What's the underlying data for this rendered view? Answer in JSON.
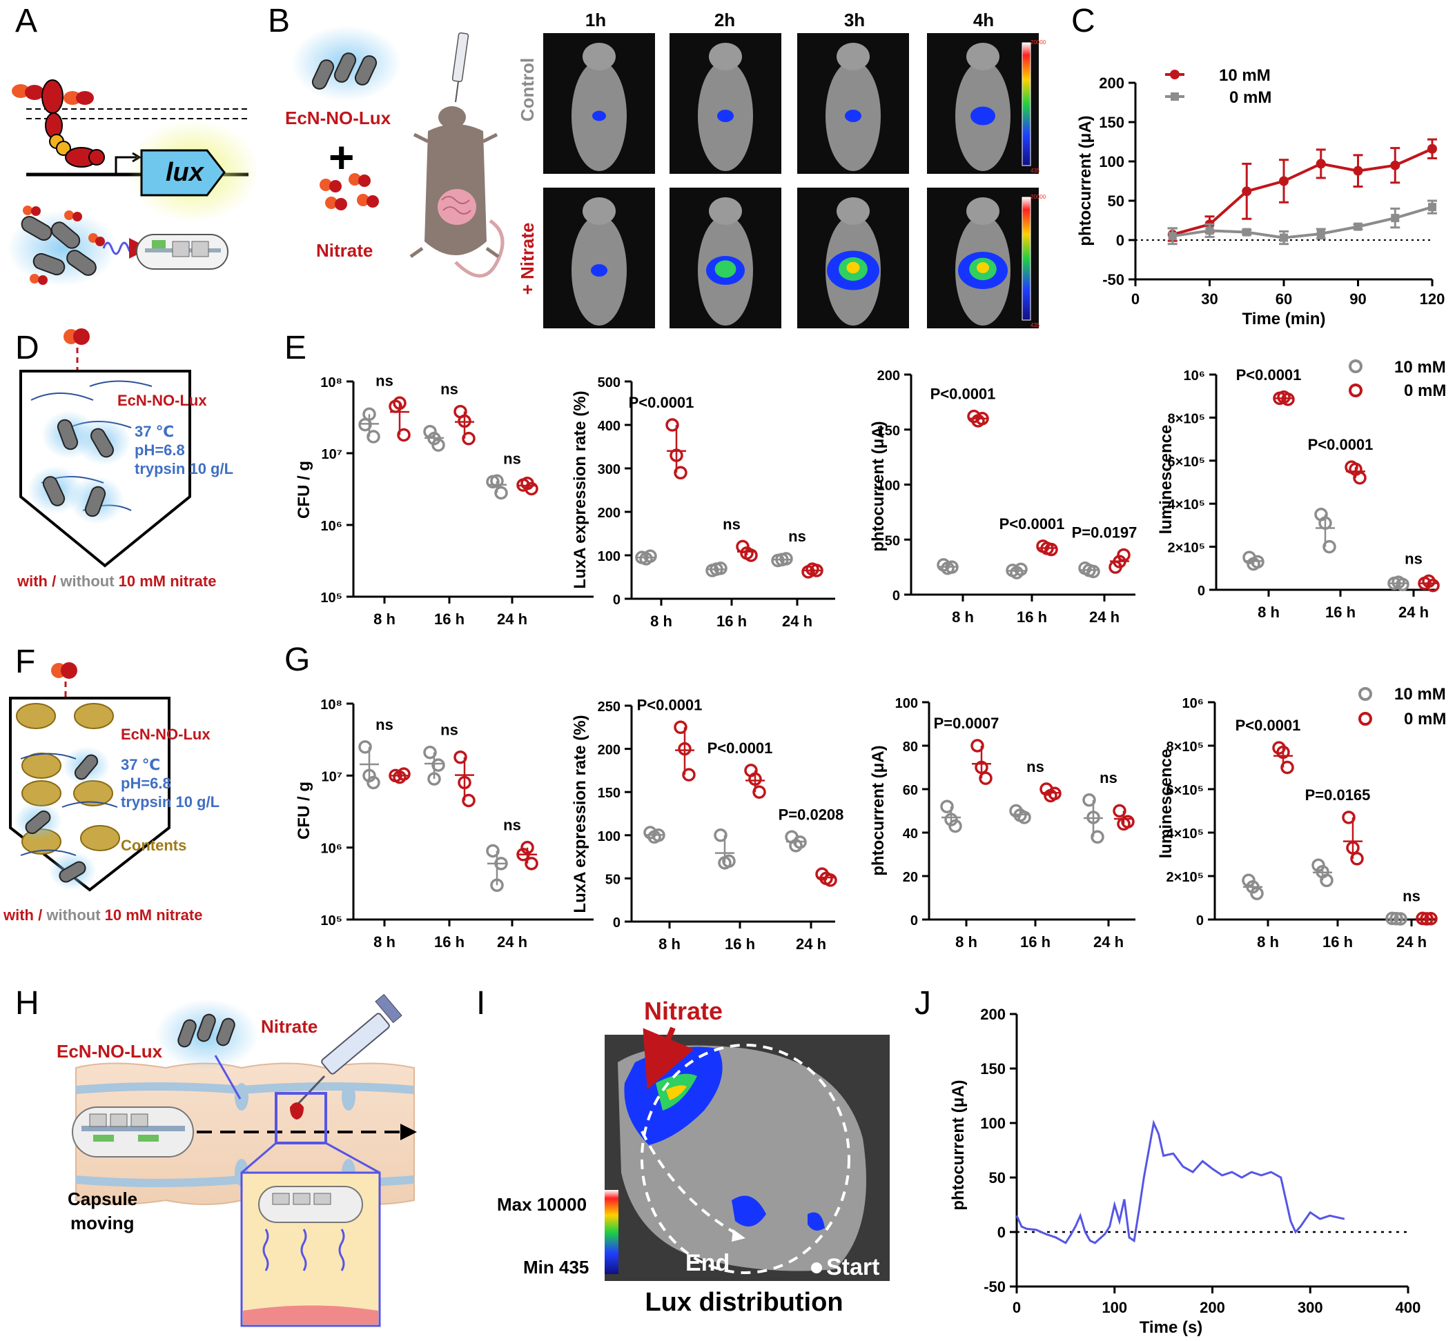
{
  "panels": {
    "A": "A",
    "B": "B",
    "C": "C",
    "D": "D",
    "E": "E",
    "F": "F",
    "G": "G",
    "H": "H",
    "I": "I",
    "J": "J"
  },
  "colors": {
    "red": "#c0161b",
    "grey": "#8c8c8c",
    "blue": "#3f6fc4",
    "brown": "#a07a14",
    "purple": "#5555e6",
    "lux_box": "#6fc7ee"
  },
  "panelA": {
    "gene": "lux"
  },
  "panelB": {
    "strain": "EcN-NO-Lux",
    "plus": "+",
    "nitrate": "Nitrate",
    "timepoints": [
      "1h",
      "2h",
      "3h",
      "4h"
    ],
    "rows": [
      "Control",
      "+ Nitrate"
    ],
    "scale_max": "20000",
    "scale_min": "435"
  },
  "panelD": {
    "strain": "EcN-NO-Lux",
    "temp": "37 ℃",
    "ph": "pH=6.8",
    "trypsin": "trypsin 10 g/L",
    "cond_with": "with",
    "cond_slash": " / ",
    "cond_without": "without",
    "cond_rest": " 10 mM nitrate"
  },
  "panelF": {
    "strain": "EcN-NO-Lux",
    "temp": "37 ℃",
    "ph": "pH=6.8",
    "trypsin": "trypsin 10 g/L",
    "contents": "Contents",
    "cond_with": "with",
    "cond_slash": " / ",
    "cond_without": "without",
    "cond_rest": " 10 mM nitrate"
  },
  "panelH": {
    "strain": "EcN-NO-Lux",
    "nitrate": "Nitrate",
    "capsule1": "Capsule",
    "capsule2": "moving"
  },
  "panelI": {
    "arrow_label": "Nitrate",
    "max": "Max 10000",
    "min": "Min 435",
    "end": "End",
    "start": "Start",
    "caption": "Lux distribution"
  },
  "legend": {
    "high": "10 mM",
    "low": "0 mM"
  },
  "chart_data": [
    {
      "id": "C",
      "type": "line",
      "xlabel": "Time (min)",
      "ylabel": "phtocurrent (μA)",
      "xlim": [
        0,
        120
      ],
      "ylim": [
        -50,
        200
      ],
      "xticks": [
        0,
        30,
        60,
        90,
        120
      ],
      "yticks": [
        -50,
        0,
        50,
        100,
        150,
        200
      ],
      "x": [
        15,
        30,
        45,
        60,
        75,
        90,
        105,
        120
      ],
      "series": [
        {
          "name": "10 mM",
          "values": [
            7,
            20,
            62,
            75,
            97,
            88,
            95,
            116
          ],
          "err": [
            8,
            10,
            35,
            27,
            18,
            20,
            22,
            12
          ]
        },
        {
          "name": "0 mM",
          "values": [
            5,
            12,
            10,
            3,
            8,
            17,
            28,
            42
          ],
          "err": [
            10,
            8,
            3,
            8,
            6,
            3,
            12,
            8
          ]
        }
      ]
    },
    {
      "id": "E1",
      "type": "scatter",
      "ylabel": "CFU / g",
      "log": true,
      "ylim": [
        100000,
        100000000
      ],
      "yticks": [
        "10⁵",
        "10⁶",
        "10⁷",
        "10⁸"
      ],
      "categories": [
        "8 h",
        "16 h",
        "24 h"
      ],
      "series": [
        {
          "name": "10 mM",
          "points": [
            [
              25000000,
              35000000,
              17000000
            ],
            [
              20000000,
              16000000,
              13000000
            ],
            [
              4000000,
              4100000,
              2800000
            ]
          ]
        },
        {
          "name": "0 mM",
          "points": [
            [
              45000000,
              50000000,
              18000000
            ],
            [
              38000000,
              28000000,
              16000000
            ],
            [
              3600000,
              3800000,
              3200000
            ]
          ]
        }
      ],
      "annotations": [
        "ns",
        "ns",
        "ns"
      ]
    },
    {
      "id": "E2",
      "type": "scatter",
      "ylabel": "LuxA expression rate (%)",
      "ylim": [
        0,
        500
      ],
      "yticks": [
        0,
        100,
        200,
        300,
        400,
        500
      ],
      "categories": [
        "8 h",
        "16 h",
        "24 h"
      ],
      "series": [
        {
          "name": "10 mM",
          "points": [
            [
              95,
              92,
              98
            ],
            [
              65,
              68,
              70
            ],
            [
              88,
              90,
              92
            ]
          ]
        },
        {
          "name": "0 mM",
          "points": [
            [
              400,
              330,
              290
            ],
            [
              120,
              105,
              100
            ],
            [
              62,
              68,
              65
            ]
          ]
        }
      ],
      "annotations": [
        "P<0.0001",
        "ns",
        "ns"
      ]
    },
    {
      "id": "E3",
      "type": "scatter",
      "ylabel": "phtocurrent (μA)",
      "ylim": [
        0,
        200
      ],
      "yticks": [
        0,
        50,
        100,
        150,
        200
      ],
      "categories": [
        "8 h",
        "16 h",
        "24 h"
      ],
      "series": [
        {
          "name": "10 mM",
          "points": [
            [
              27,
              24,
              25
            ],
            [
              22,
              20,
              23
            ],
            [
              24,
              22,
              21
            ]
          ]
        },
        {
          "name": "0 mM",
          "points": [
            [
              162,
              158,
              160
            ],
            [
              44,
              42,
              41
            ],
            [
              25,
              30,
              36
            ]
          ]
        }
      ],
      "annotations": [
        "P<0.0001",
        "P<0.0001",
        "P=0.0197"
      ]
    },
    {
      "id": "E4",
      "type": "scatter",
      "ylabel": "luminescence",
      "ylim": [
        0,
        1000000
      ],
      "yticks": [
        "0",
        "2×10⁵",
        "4×10⁵",
        "6×10⁵",
        "8×10⁵",
        "10⁶"
      ],
      "categories": [
        "8 h",
        "16 h",
        "24 h"
      ],
      "series": [
        {
          "name": "10 mM",
          "points": [
            [
              150000,
              120000,
              130000
            ],
            [
              350000,
              310000,
              200000
            ],
            [
              30000,
              35000,
              25000
            ]
          ]
        },
        {
          "name": "0 mM",
          "points": [
            [
              890000,
              895000,
              885000
            ],
            [
              570000,
              560000,
              520000
            ],
            [
              30000,
              40000,
              20000
            ]
          ]
        }
      ],
      "annotations": [
        "P<0.0001",
        "P<0.0001",
        "ns"
      ]
    },
    {
      "id": "G1",
      "type": "scatter",
      "ylabel": "CFU / g",
      "log": true,
      "ylim": [
        100000,
        100000000
      ],
      "yticks": [
        "10⁵",
        "10⁶",
        "10⁷",
        "10⁸"
      ],
      "categories": [
        "8 h",
        "16 h",
        "24 h"
      ],
      "series": [
        {
          "name": "10 mM",
          "points": [
            [
              25000000,
              10000000,
              8000000
            ],
            [
              21000000,
              9000000,
              14000000
            ],
            [
              900000,
              300000,
              600000
            ]
          ]
        },
        {
          "name": "0 mM",
          "points": [
            [
              10000000,
              9500000,
              10500000
            ],
            [
              18000000,
              8000000,
              4500000
            ],
            [
              800000,
              1000000,
              600000
            ]
          ]
        }
      ],
      "annotations": [
        "ns",
        "ns",
        "ns"
      ]
    },
    {
      "id": "G2",
      "type": "scatter",
      "ylabel": "LuxA expression rate (%)",
      "ylim": [
        0,
        250
      ],
      "yticks": [
        0,
        50,
        100,
        150,
        200,
        250
      ],
      "categories": [
        "8 h",
        "16 h",
        "24 h"
      ],
      "series": [
        {
          "name": "10 mM",
          "points": [
            [
              103,
              98,
              100
            ],
            [
              100,
              68,
              70
            ],
            [
              98,
              88,
              92
            ]
          ]
        },
        {
          "name": "0 mM",
          "points": [
            [
              225,
              200,
              170
            ],
            [
              175,
              165,
              150
            ],
            [
              55,
              50,
              48
            ]
          ]
        }
      ],
      "annotations": [
        "P<0.0001",
        "P<0.0001",
        "P=0.0208"
      ]
    },
    {
      "id": "G3",
      "type": "scatter",
      "ylabel": "phtocurrent (μA)",
      "ylim": [
        0,
        100
      ],
      "yticks": [
        0,
        20,
        40,
        60,
        80,
        100
      ],
      "categories": [
        "8 h",
        "16 h",
        "24 h"
      ],
      "series": [
        {
          "name": "10 mM",
          "points": [
            [
              52,
              46,
              43
            ],
            [
              50,
              48,
              47
            ],
            [
              55,
              47,
              38
            ]
          ]
        },
        {
          "name": "0 mM",
          "points": [
            [
              80,
              70,
              65
            ],
            [
              60,
              57,
              58
            ],
            [
              50,
              44,
              45
            ]
          ]
        }
      ],
      "annotations": [
        "P=0.0007",
        "ns",
        "ns"
      ]
    },
    {
      "id": "G4",
      "type": "scatter",
      "ylabel": "luminescence",
      "ylim": [
        0,
        1000000
      ],
      "yticks": [
        "0",
        "2×10⁵",
        "4×10⁵",
        "6×10⁵",
        "8×10⁵",
        "10⁶"
      ],
      "categories": [
        "8 h",
        "16 h",
        "24 h"
      ],
      "series": [
        {
          "name": "10 mM",
          "points": [
            [
              180000,
              150000,
              120000
            ],
            [
              250000,
              220000,
              180000
            ],
            [
              5000,
              4000,
              3000
            ]
          ]
        },
        {
          "name": "0 mM",
          "points": [
            [
              790000,
              770000,
              700000
            ],
            [
              470000,
              330000,
              280000
            ],
            [
              5000,
              3000,
              4000
            ]
          ]
        }
      ],
      "annotations": [
        "P<0.0001",
        "P=0.0165",
        "ns"
      ]
    },
    {
      "id": "J",
      "type": "line",
      "xlabel": "Time (s)",
      "ylabel": "phtocurrent (μA)",
      "xlim": [
        0,
        400
      ],
      "ylim": [
        -50,
        200
      ],
      "xticks": [
        0,
        100,
        200,
        300,
        400
      ],
      "yticks": [
        -50,
        0,
        50,
        100,
        150,
        200
      ],
      "x": [
        0,
        5,
        10,
        20,
        30,
        40,
        50,
        55,
        60,
        65,
        70,
        75,
        80,
        90,
        95,
        100,
        105,
        110,
        115,
        120,
        125,
        130,
        135,
        140,
        145,
        150,
        160,
        170,
        180,
        190,
        200,
        210,
        220,
        230,
        240,
        250,
        260,
        270,
        275,
        280,
        285,
        290,
        300,
        310,
        320,
        335
      ],
      "values": [
        15,
        5,
        3,
        2,
        -2,
        -5,
        -10,
        -3,
        5,
        15,
        0,
        -8,
        -10,
        -2,
        5,
        25,
        10,
        30,
        -5,
        -8,
        20,
        50,
        75,
        100,
        90,
        70,
        72,
        60,
        55,
        65,
        58,
        52,
        55,
        50,
        55,
        52,
        55,
        50,
        30,
        10,
        0,
        5,
        18,
        12,
        15,
        12
      ]
    }
  ]
}
